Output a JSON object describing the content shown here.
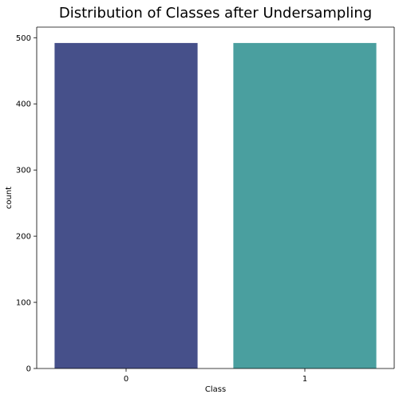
{
  "chart_data": {
    "type": "bar",
    "title": "Distribution of Classes after Undersampling",
    "xlabel": "Class",
    "ylabel": "count",
    "categories": [
      "0",
      "1"
    ],
    "values": [
      492,
      492
    ],
    "ylim": [
      0,
      516
    ],
    "yticks": [
      0,
      100,
      200,
      300,
      400,
      500
    ],
    "grid": false,
    "colors": [
      "#46508A",
      "#4A9F9F"
    ]
  }
}
